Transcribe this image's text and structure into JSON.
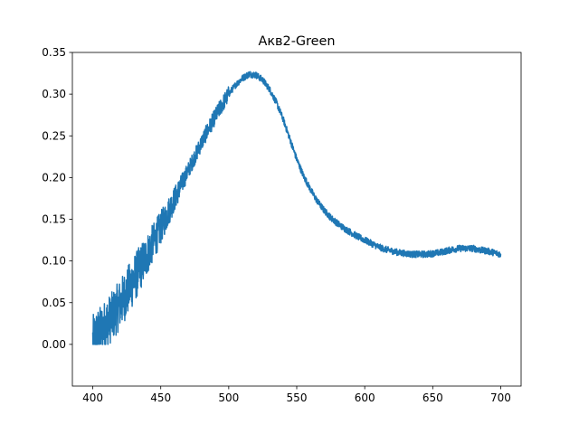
{
  "chart_data": {
    "type": "line",
    "title": "Акв2-Green",
    "xlabel": "",
    "ylabel": "",
    "xlim": [
      385,
      715
    ],
    "ylim": [
      -0.05,
      0.35
    ],
    "x_ticks": [
      400,
      450,
      500,
      550,
      600,
      650,
      700
    ],
    "x_tick_labels": [
      "400",
      "450",
      "500",
      "550",
      "600",
      "650",
      "700"
    ],
    "y_ticks": [
      0.0,
      0.05,
      0.1,
      0.15,
      0.2,
      0.25,
      0.3,
      0.35
    ],
    "y_tick_labels": [
      "0.00",
      "0.05",
      "0.10",
      "0.15",
      "0.20",
      "0.25",
      "0.30",
      "0.35"
    ],
    "grid": false,
    "series": [
      {
        "color": "#1f77b4",
        "x": [
          400,
          402,
          405,
          410,
          415,
          420,
          425,
          430,
          435,
          440,
          445,
          450,
          455,
          460,
          465,
          470,
          475,
          480,
          485,
          490,
          495,
          500,
          505,
          510,
          515,
          520,
          525,
          530,
          535,
          540,
          545,
          550,
          555,
          560,
          565,
          570,
          575,
          580,
          585,
          590,
          595,
          600,
          605,
          610,
          615,
          620,
          625,
          630,
          635,
          640,
          645,
          650,
          655,
          660,
          665,
          670,
          675,
          680,
          685,
          690,
          695,
          700
        ],
        "y": [
          0.005,
          0.01,
          0.015,
          0.025,
          0.035,
          0.048,
          0.062,
          0.077,
          0.092,
          0.108,
          0.124,
          0.14,
          0.157,
          0.174,
          0.191,
          0.208,
          0.225,
          0.242,
          0.258,
          0.273,
          0.287,
          0.3,
          0.311,
          0.319,
          0.324,
          0.323,
          0.317,
          0.306,
          0.29,
          0.27,
          0.246,
          0.222,
          0.202,
          0.186,
          0.172,
          0.161,
          0.152,
          0.145,
          0.139,
          0.134,
          0.129,
          0.125,
          0.121,
          0.117,
          0.114,
          0.112,
          0.11,
          0.109,
          0.108,
          0.108,
          0.108,
          0.109,
          0.11,
          0.112,
          0.114,
          0.115,
          0.115,
          0.115,
          0.113,
          0.112,
          0.11,
          0.108
        ]
      }
    ]
  }
}
